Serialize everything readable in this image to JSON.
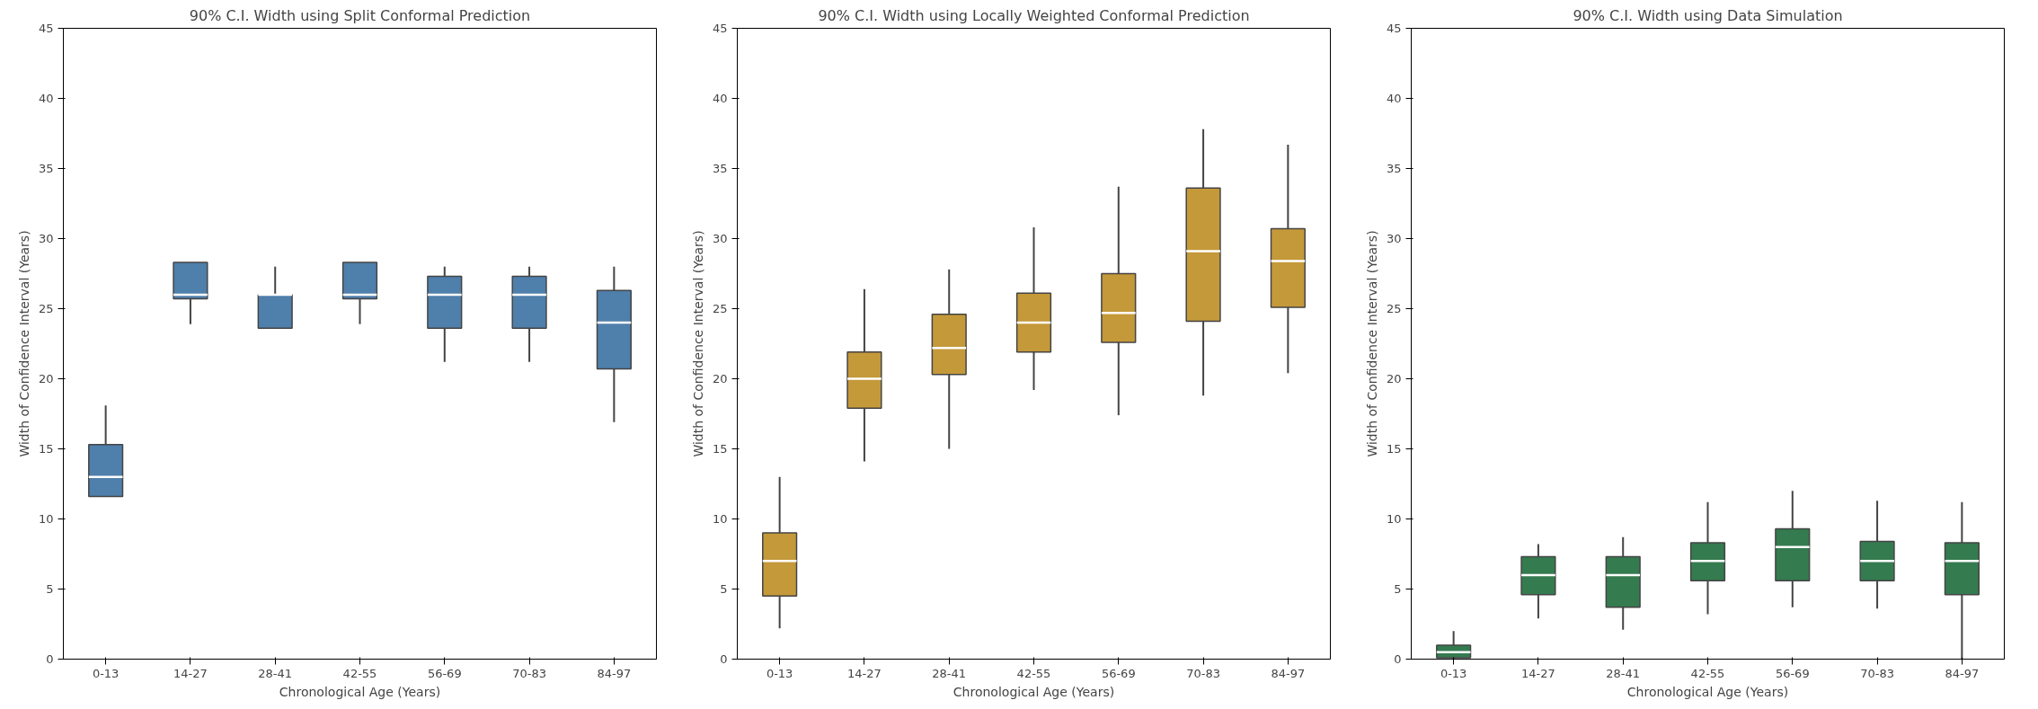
{
  "chart_data": [
    {
      "type": "box",
      "title": "90% C.I. Width using Split Conformal Prediction",
      "xlabel": "Chronological Age (Years)",
      "ylabel": "Width of Confidence Interval (Years)",
      "categories": [
        "0-13",
        "14-27",
        "28-41",
        "42-55",
        "56-69",
        "70-83",
        "84-97"
      ],
      "ylim": [
        0,
        45
      ],
      "yticks": [
        0,
        5,
        10,
        15,
        20,
        25,
        30,
        35,
        40,
        45
      ],
      "series": [
        {
          "color": "#4f7fab",
          "boxes": [
            {
              "low": 11.6,
              "q1": 11.6,
              "median": 13.0,
              "q3": 15.3,
              "high": 18.1
            },
            {
              "low": 23.9,
              "q1": 25.7,
              "median": 26.0,
              "q3": 28.3,
              "high": 28.3
            },
            {
              "low": 23.6,
              "q1": 23.6,
              "median": 26.0,
              "q3": 26.0,
              "high": 28.0
            },
            {
              "low": 23.9,
              "q1": 25.7,
              "median": 26.0,
              "q3": 28.3,
              "high": 28.3
            },
            {
              "low": 21.2,
              "q1": 23.6,
              "median": 26.0,
              "q3": 27.3,
              "high": 28.0
            },
            {
              "low": 21.2,
              "q1": 23.6,
              "median": 26.0,
              "q3": 27.3,
              "high": 28.0
            },
            {
              "low": 16.9,
              "q1": 20.7,
              "median": 24.0,
              "q3": 26.3,
              "high": 28.0
            }
          ]
        }
      ]
    },
    {
      "type": "box",
      "title": "90% C.I. Width using Locally Weighted Conformal Prediction",
      "xlabel": "Chronological Age (Years)",
      "ylabel": "Width of Confidence Interval (Years)",
      "categories": [
        "0-13",
        "14-27",
        "28-41",
        "42-55",
        "56-69",
        "70-83",
        "84-97"
      ],
      "ylim": [
        0,
        45
      ],
      "yticks": [
        0,
        5,
        10,
        15,
        20,
        25,
        30,
        35,
        40,
        45
      ],
      "series": [
        {
          "color": "#c4993a",
          "boxes": [
            {
              "low": 2.2,
              "q1": 4.5,
              "median": 7.0,
              "q3": 9.0,
              "high": 13.0
            },
            {
              "low": 14.1,
              "q1": 17.9,
              "median": 20.0,
              "q3": 21.9,
              "high": 26.4
            },
            {
              "low": 15.0,
              "q1": 20.3,
              "median": 22.2,
              "q3": 24.6,
              "high": 27.8
            },
            {
              "low": 19.2,
              "q1": 21.9,
              "median": 24.0,
              "q3": 26.1,
              "high": 30.8
            },
            {
              "low": 17.4,
              "q1": 22.6,
              "median": 24.7,
              "q3": 27.5,
              "high": 33.7
            },
            {
              "low": 18.8,
              "q1": 24.1,
              "median": 29.1,
              "q3": 33.6,
              "high": 37.8
            },
            {
              "low": 20.4,
              "q1": 25.1,
              "median": 28.4,
              "q3": 30.7,
              "high": 36.7
            }
          ]
        }
      ]
    },
    {
      "type": "box",
      "title": "90% C.I. Width using Data Simulation",
      "xlabel": "Chronological Age (Years)",
      "ylabel": "Width of Confidence Interval (Years)",
      "categories": [
        "0-13",
        "14-27",
        "28-41",
        "42-55",
        "56-69",
        "70-83",
        "84-97"
      ],
      "ylim": [
        0,
        45
      ],
      "yticks": [
        0,
        5,
        10,
        15,
        20,
        25,
        30,
        35,
        40,
        45
      ],
      "series": [
        {
          "color": "#347b50",
          "boxes": [
            {
              "low": 0,
              "q1": 0.1,
              "median": 0.5,
              "q3": 1.0,
              "high": 2.0
            },
            {
              "low": 2.9,
              "q1": 4.6,
              "median": 6.0,
              "q3": 7.3,
              "high": 8.2
            },
            {
              "low": 2.1,
              "q1": 3.7,
              "median": 6.0,
              "q3": 7.3,
              "high": 8.7
            },
            {
              "low": 3.2,
              "q1": 5.6,
              "median": 7.0,
              "q3": 8.3,
              "high": 11.2
            },
            {
              "low": 3.7,
              "q1": 5.6,
              "median": 8.0,
              "q3": 9.3,
              "high": 12.0
            },
            {
              "low": 3.6,
              "q1": 5.6,
              "median": 7.0,
              "q3": 8.4,
              "high": 11.3
            },
            {
              "low": 0,
              "q1": 4.6,
              "median": 7.0,
              "q3": 8.3,
              "high": 11.2
            }
          ]
        }
      ]
    }
  ]
}
